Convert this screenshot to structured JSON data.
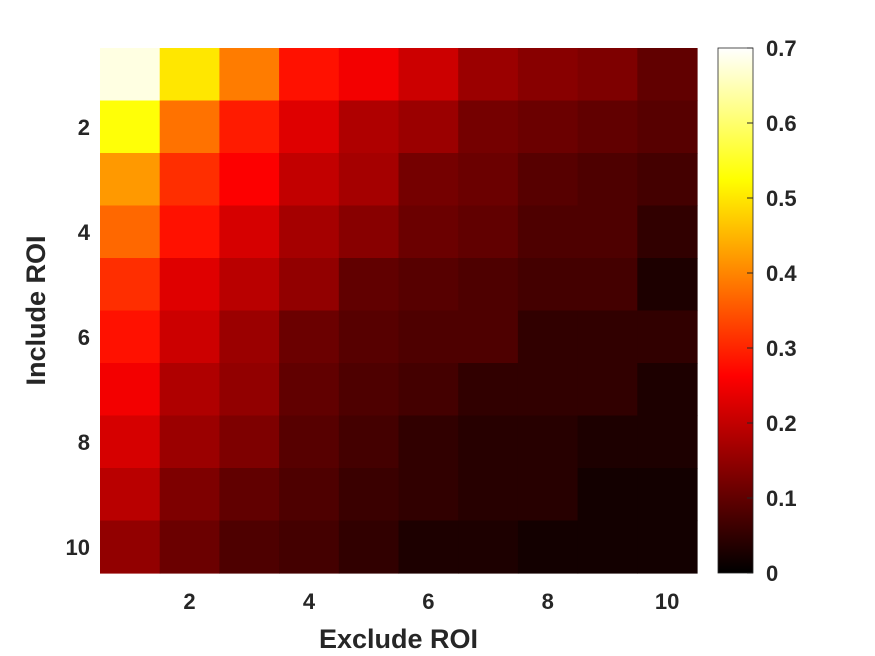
{
  "chart_data": {
    "type": "heatmap",
    "title": "",
    "xlabel": "Exclude ROI",
    "ylabel": "Include ROI",
    "x": [
      1,
      2,
      3,
      4,
      5,
      6,
      7,
      8,
      9,
      10
    ],
    "y": [
      1,
      2,
      3,
      4,
      5,
      6,
      7,
      8,
      9,
      10
    ],
    "x_ticks": [
      "2",
      "4",
      "6",
      "8",
      "10"
    ],
    "y_ticks": [
      "2",
      "4",
      "6",
      "8",
      "10"
    ],
    "y_direction": "reverse",
    "colormap": "hot",
    "clim": [
      0,
      0.7
    ],
    "colorbar_ticks": [
      "0",
      "0.1",
      "0.2",
      "0.3",
      "0.4",
      "0.5",
      "0.6",
      "0.7"
    ],
    "colorbar_position": "right",
    "values": [
      [
        0.68,
        0.5,
        0.39,
        0.28,
        0.25,
        0.21,
        0.16,
        0.14,
        0.13,
        0.1
      ],
      [
        0.53,
        0.38,
        0.29,
        0.23,
        0.18,
        0.16,
        0.12,
        0.11,
        0.1,
        0.09
      ],
      [
        0.42,
        0.31,
        0.26,
        0.2,
        0.17,
        0.12,
        0.11,
        0.09,
        0.08,
        0.07
      ],
      [
        0.37,
        0.28,
        0.22,
        0.17,
        0.14,
        0.11,
        0.1,
        0.08,
        0.08,
        0.05
      ],
      [
        0.31,
        0.23,
        0.19,
        0.15,
        0.1,
        0.09,
        0.08,
        0.07,
        0.07,
        0.03
      ],
      [
        0.28,
        0.21,
        0.16,
        0.11,
        0.09,
        0.08,
        0.08,
        0.05,
        0.05,
        0.05
      ],
      [
        0.25,
        0.18,
        0.15,
        0.1,
        0.08,
        0.07,
        0.05,
        0.05,
        0.05,
        0.03
      ],
      [
        0.22,
        0.16,
        0.13,
        0.09,
        0.07,
        0.05,
        0.04,
        0.04,
        0.03,
        0.03
      ],
      [
        0.19,
        0.13,
        0.1,
        0.08,
        0.06,
        0.05,
        0.04,
        0.04,
        0.02,
        0.02
      ],
      [
        0.15,
        0.11,
        0.08,
        0.07,
        0.05,
        0.03,
        0.03,
        0.02,
        0.02,
        0.02
      ]
    ]
  }
}
